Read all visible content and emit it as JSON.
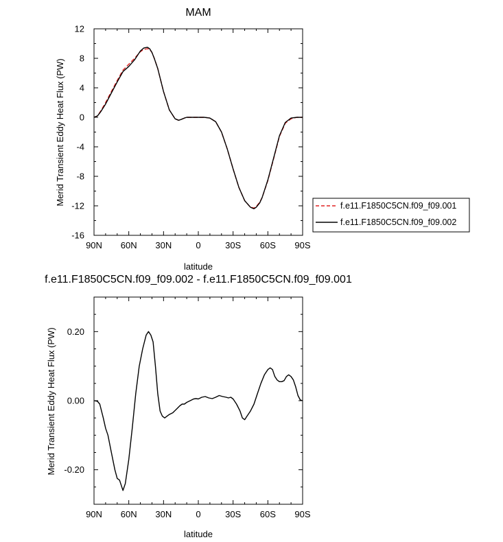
{
  "chart_data": [
    {
      "type": "line",
      "title": "MAM",
      "xlabel": "latitude",
      "ylabel": "Merid Transient Eddy Heat Flux (PW)",
      "xlim": [
        90,
        -90
      ],
      "ylim": [
        -16,
        12
      ],
      "xticks": [
        90,
        60,
        30,
        0,
        -30,
        -60,
        -90
      ],
      "xtick_labels": [
        "90N",
        "60N",
        "30N",
        "0",
        "30S",
        "60S",
        "90S"
      ],
      "yticks": [
        -16,
        -12,
        -8,
        -4,
        0,
        4,
        8,
        12
      ],
      "ytick_labels": [
        "-16",
        "-12",
        "-8",
        "-4",
        "0",
        "4",
        "8",
        "12"
      ],
      "grid": false,
      "legend_position": "right",
      "series": [
        {
          "name": "f.e11.F1850C5CN.f09_f09.001",
          "color": "#e02020",
          "dash": "dashed",
          "x": [
            90,
            87,
            84,
            80,
            75,
            70,
            65,
            60,
            55,
            50,
            47,
            44,
            42,
            40,
            38,
            35,
            30,
            25,
            20,
            17,
            15,
            12,
            10,
            5,
            0,
            -5,
            -10,
            -15,
            -20,
            -25,
            -30,
            -35,
            -40,
            -45,
            -48,
            -50,
            -53,
            -55,
            -60,
            -65,
            -70,
            -75,
            -80,
            -85,
            -90
          ],
          "y": [
            0.0,
            0.2,
            0.9,
            2.0,
            3.5,
            5.0,
            6.4,
            7.2,
            8.0,
            8.9,
            9.2,
            9.3,
            9.2,
            8.8,
            8.0,
            6.6,
            3.5,
            1.0,
            -0.2,
            -0.4,
            -0.3,
            -0.1,
            0.0,
            0.0,
            0.0,
            0.0,
            -0.1,
            -0.6,
            -2.0,
            -4.3,
            -7.0,
            -9.5,
            -11.3,
            -12.2,
            -12.3,
            -12.1,
            -11.5,
            -10.9,
            -8.6,
            -5.6,
            -2.6,
            -0.8,
            -0.2,
            0.0,
            0.0
          ]
        },
        {
          "name": "f.e11.F1850C5CN.f09_f09.002",
          "color": "#000000",
          "dash": "solid",
          "x": [
            90,
            87,
            84,
            80,
            75,
            70,
            65,
            60,
            55,
            50,
            47,
            44,
            42,
            40,
            38,
            35,
            30,
            25,
            20,
            17,
            15,
            12,
            10,
            5,
            0,
            -5,
            -10,
            -15,
            -20,
            -25,
            -30,
            -35,
            -40,
            -45,
            -48,
            -50,
            -53,
            -55,
            -60,
            -65,
            -70,
            -75,
            -80,
            -85,
            -90
          ],
          "y": [
            0.0,
            0.2,
            0.8,
            1.8,
            3.3,
            4.8,
            6.2,
            6.9,
            7.8,
            9.0,
            9.4,
            9.5,
            9.3,
            8.8,
            8.0,
            6.6,
            3.5,
            1.0,
            -0.2,
            -0.4,
            -0.3,
            -0.1,
            0.0,
            0.0,
            0.0,
            0.0,
            -0.1,
            -0.6,
            -2.0,
            -4.3,
            -7.0,
            -9.5,
            -11.3,
            -12.2,
            -12.4,
            -12.2,
            -11.6,
            -10.9,
            -8.5,
            -5.5,
            -2.5,
            -0.7,
            -0.1,
            0.0,
            0.0
          ]
        }
      ]
    },
    {
      "type": "line",
      "title": "f.e11.F1850C5CN.f09_f09.002 - f.e11.F1850C5CN.f09_f09.001",
      "xlabel": "latitude",
      "ylabel": "Merid Transient Eddy Heat Flux (PW)",
      "xlim": [
        90,
        -90
      ],
      "ylim": [
        -0.3,
        0.3
      ],
      "xticks": [
        90,
        60,
        30,
        0,
        -30,
        -60,
        -90
      ],
      "xtick_labels": [
        "90N",
        "60N",
        "30N",
        "0",
        "30S",
        "60S",
        "90S"
      ],
      "yticks": [
        -0.2,
        0.0,
        0.2
      ],
      "ytick_labels": [
        "-0.20",
        "0.00",
        "0.20"
      ],
      "grid": false,
      "series": [
        {
          "color": "#000000",
          "dash": "solid",
          "x": [
            90,
            87,
            85,
            82,
            80,
            78,
            75,
            72,
            70,
            68,
            66,
            65,
            63,
            60,
            57,
            54,
            51,
            48,
            45,
            43,
            41,
            39,
            37,
            35,
            33,
            31,
            29,
            27,
            25,
            22,
            19,
            16,
            14,
            12,
            10,
            7,
            4,
            2,
            0,
            -3,
            -6,
            -9,
            -12,
            -15,
            -18,
            -21,
            -24,
            -26,
            -28,
            -30,
            -33,
            -36,
            -38,
            -40,
            -42,
            -45,
            -48,
            -51,
            -54,
            -57,
            -60,
            -62,
            -64,
            -66,
            -68,
            -70,
            -72,
            -74,
            -76,
            -78,
            -80,
            -82,
            -84,
            -86,
            -88,
            -90
          ],
          "y": [
            0.0,
            -0.002,
            -0.01,
            -0.05,
            -0.08,
            -0.1,
            -0.15,
            -0.2,
            -0.225,
            -0.23,
            -0.25,
            -0.26,
            -0.24,
            -0.17,
            -0.08,
            0.02,
            0.1,
            0.15,
            0.19,
            0.2,
            0.19,
            0.17,
            0.1,
            0.02,
            -0.03,
            -0.045,
            -0.05,
            -0.045,
            -0.04,
            -0.035,
            -0.025,
            -0.015,
            -0.01,
            -0.01,
            -0.005,
            0.0,
            0.005,
            0.006,
            0.005,
            0.01,
            0.012,
            0.008,
            0.006,
            0.01,
            0.015,
            0.012,
            0.01,
            0.008,
            0.01,
            0.005,
            -0.01,
            -0.03,
            -0.05,
            -0.055,
            -0.045,
            -0.03,
            -0.01,
            0.02,
            0.05,
            0.075,
            0.09,
            0.095,
            0.09,
            0.07,
            0.06,
            0.055,
            0.055,
            0.058,
            0.07,
            0.075,
            0.07,
            0.06,
            0.04,
            0.015,
            0.002,
            0.0
          ]
        }
      ]
    }
  ]
}
